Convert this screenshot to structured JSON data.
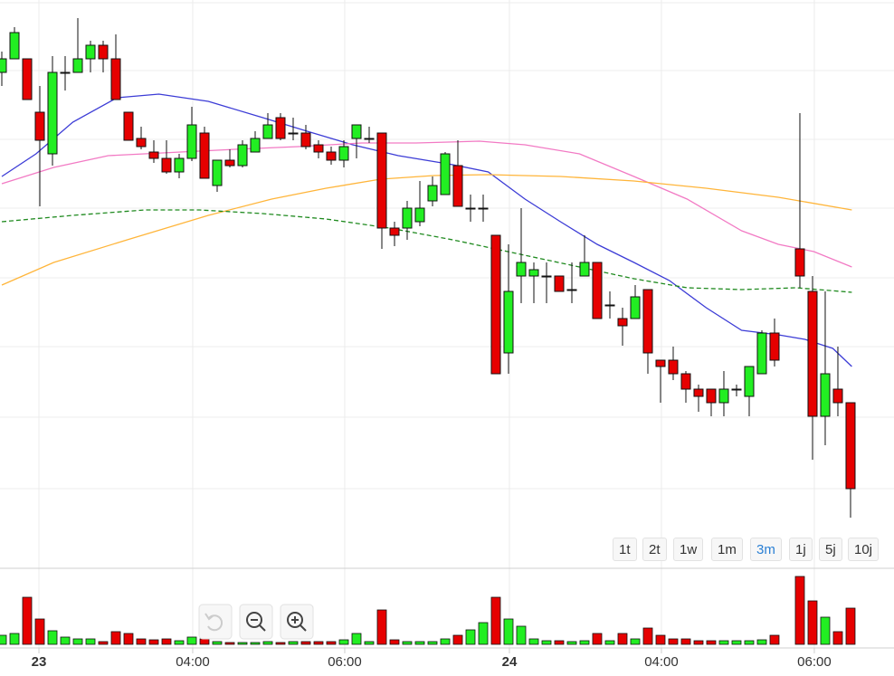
{
  "chart_data": {
    "type": "candlestick",
    "xlim": [
      -0.143,
      70.43
    ],
    "ylim": [
      0,
      620
    ],
    "xticks": [
      {
        "value": 2.93,
        "label": "23"
      },
      {
        "value": 15.07,
        "label": "04:00"
      },
      {
        "value": 27.07,
        "label": "06:00"
      },
      {
        "value": 40.07,
        "label": "24"
      },
      {
        "value": 52.07,
        "label": "04:00"
      },
      {
        "value": 64.14,
        "label": "06:00"
      }
    ],
    "candles": {
      "up_color": "#22ee22",
      "down_color": "#e60000",
      "x": [
        0,
        1,
        2,
        3,
        4,
        5,
        6,
        7,
        8,
        9,
        10,
        11,
        12,
        13,
        14,
        15,
        16,
        17,
        18,
        19,
        20,
        21,
        22,
        23,
        24,
        25,
        26,
        27,
        28,
        29,
        30,
        31,
        32,
        33,
        34,
        35,
        36,
        37,
        38,
        39,
        40,
        41,
        42,
        43,
        44,
        45,
        46,
        47,
        48,
        49,
        50,
        51,
        52,
        53,
        54,
        55,
        56,
        57,
        58,
        59,
        60,
        61,
        63,
        64,
        65,
        66,
        67
      ],
      "open": [
        540,
        555,
        555,
        496,
        450,
        540,
        540,
        555,
        570,
        555,
        496,
        467,
        452,
        445,
        430,
        445,
        473,
        415,
        443,
        437,
        452,
        467,
        490,
        473,
        473,
        460,
        452,
        443,
        467,
        467,
        473,
        368,
        368,
        375,
        398,
        405,
        437,
        390,
        390,
        360,
        230,
        315,
        315,
        315,
        315,
        300,
        315,
        330,
        283,
        268,
        268,
        300,
        222,
        222,
        207,
        190,
        190,
        175,
        190,
        182,
        207,
        252,
        345,
        298,
        160,
        190,
        175
      ],
      "high": [
        563,
        590,
        555,
        525,
        558,
        558,
        600,
        575,
        575,
        582,
        496,
        480,
        465,
        465,
        450,
        502,
        480,
        443,
        455,
        465,
        475,
        495,
        495,
        490,
        482,
        465,
        458,
        465,
        482,
        480,
        473,
        375,
        398,
        420,
        425,
        452,
        465,
        405,
        405,
        360,
        350,
        390,
        330,
        330,
        315,
        330,
        360,
        330,
        298,
        280,
        305,
        300,
        222,
        237,
        210,
        195,
        190,
        210,
        195,
        215,
        255,
        268,
        495,
        315,
        298,
        237,
        175
      ],
      "low": [
        525,
        555,
        510,
        392,
        437,
        520,
        540,
        540,
        540,
        510,
        465,
        455,
        440,
        428,
        423,
        442,
        423,
        408,
        435,
        435,
        452,
        467,
        465,
        465,
        455,
        445,
        438,
        435,
        445,
        462,
        345,
        348,
        355,
        370,
        392,
        405,
        392,
        375,
        375,
        207,
        207,
        285,
        285,
        285,
        298,
        285,
        315,
        268,
        268,
        238,
        268,
        207,
        175,
        200,
        175,
        165,
        160,
        160,
        182,
        160,
        207,
        215,
        302,
        112,
        128,
        160,
        48
      ],
      "close": [
        555,
        584,
        510,
        465,
        540,
        540,
        555,
        570,
        555,
        510,
        465,
        458,
        445,
        430,
        445,
        482,
        423,
        443,
        437,
        460,
        467,
        482,
        467,
        473,
        458,
        452,
        443,
        458,
        482,
        467,
        368,
        360,
        390,
        390,
        415,
        450,
        392,
        390,
        390,
        207,
        298,
        330,
        322,
        315,
        298,
        300,
        330,
        268,
        283,
        260,
        292,
        230,
        215,
        207,
        190,
        182,
        175,
        190,
        190,
        215,
        252,
        222,
        315,
        160,
        207,
        175,
        80
      ]
    },
    "volume": {
      "ylim": [
        0,
        85
      ],
      "values": [
        10,
        12,
        52,
        28,
        15,
        8,
        6,
        6,
        3,
        14,
        12,
        6,
        5,
        6,
        4,
        8,
        6,
        3,
        2,
        2,
        2,
        3,
        2,
        3,
        3,
        3,
        3,
        5,
        12,
        3,
        38,
        5,
        3,
        3,
        3,
        6,
        10,
        16,
        24,
        52,
        28,
        20,
        6,
        4,
        4,
        3,
        4,
        12,
        4,
        12,
        6,
        18,
        10,
        6,
        6,
        4,
        4,
        4,
        4,
        4,
        5,
        10,
        75,
        48,
        30,
        14,
        40
      ]
    },
    "moving_averages": [
      {
        "color": "#3c3cd6",
        "dash": false,
        "x": [
          0,
          2.7,
          5.6,
          9.1,
          12.4,
          16.3,
          20.6,
          24.1,
          27.7,
          31.3,
          35.6,
          38.4,
          41.3,
          44.1,
          47,
          49.9,
          52.7,
          55.6,
          58.4,
          61.3,
          63.4,
          65.6,
          67.1
        ],
        "values": [
          425,
          450,
          485,
          512,
          516,
          508,
          490,
          475,
          460,
          448,
          438,
          430,
          400,
          375,
          350,
          330,
          310,
          280,
          255,
          250,
          245,
          235,
          215
        ]
      },
      {
        "color": "#f27ac4",
        "dash": false,
        "x": [
          0,
          4.1,
          8.4,
          14.1,
          18.4,
          23.4,
          28.4,
          32.7,
          37.7,
          41.3,
          45.6,
          49.9,
          54.1,
          58.4,
          61.3,
          64.1,
          67.1
        ],
        "values": [
          417,
          435,
          448,
          452,
          455,
          458,
          462,
          462,
          464,
          460,
          450,
          425,
          400,
          365,
          350,
          342,
          325
        ]
      },
      {
        "color": "#ffb53a",
        "dash": false,
        "x": [
          0,
          4.1,
          9.9,
          16.3,
          21.3,
          25.6,
          29.9,
          34.1,
          38.4,
          44.1,
          49.9,
          55.6,
          61.3,
          67.1
        ],
        "values": [
          305,
          330,
          355,
          382,
          400,
          412,
          422,
          426,
          427,
          425,
          420,
          412,
          402,
          388
        ]
      },
      {
        "color": "#1f8a1f",
        "dash": true,
        "x": [
          0,
          5.6,
          11.3,
          15.6,
          20.6,
          25.6,
          30.6,
          35.6,
          40.6,
          45.6,
          49.9,
          54.1,
          58.4,
          62.7,
          67.1
        ],
        "values": [
          375,
          382,
          388,
          388,
          384,
          378,
          368,
          355,
          340,
          325,
          312,
          302,
          300,
          302,
          297
        ]
      }
    ]
  },
  "range_buttons": {
    "labels": [
      "1t",
      "2t",
      "1w",
      "1m",
      "3m",
      "1j",
      "5j",
      "10j"
    ],
    "active": 4
  }
}
